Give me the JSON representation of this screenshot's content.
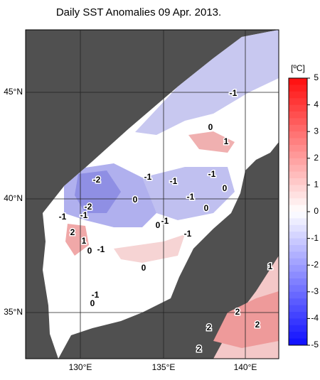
{
  "title": "Daily SST Anomalies 09 Apr. 2013.",
  "map": {
    "lon_labels": [
      "130°E",
      "135°E",
      "140°E"
    ],
    "lat_labels": [
      "45°N",
      "40°N",
      "35°N"
    ],
    "contour_labels": [
      "-1",
      "0",
      "1",
      "-2",
      "-1",
      "-1",
      "-1",
      "-1",
      "0",
      "0",
      "0",
      "-1",
      "0",
      "-2",
      "-1",
      "-1",
      "2",
      "1",
      "0",
      "-1",
      "-1",
      "0",
      "-1",
      "0",
      "1",
      "2",
      "2",
      "2",
      "2"
    ]
  },
  "colorbar": {
    "unit": "[ºC]",
    "ticks": [
      5,
      4,
      3,
      2,
      1,
      0,
      -1,
      -2,
      -3,
      -4,
      -5
    ]
  }
}
